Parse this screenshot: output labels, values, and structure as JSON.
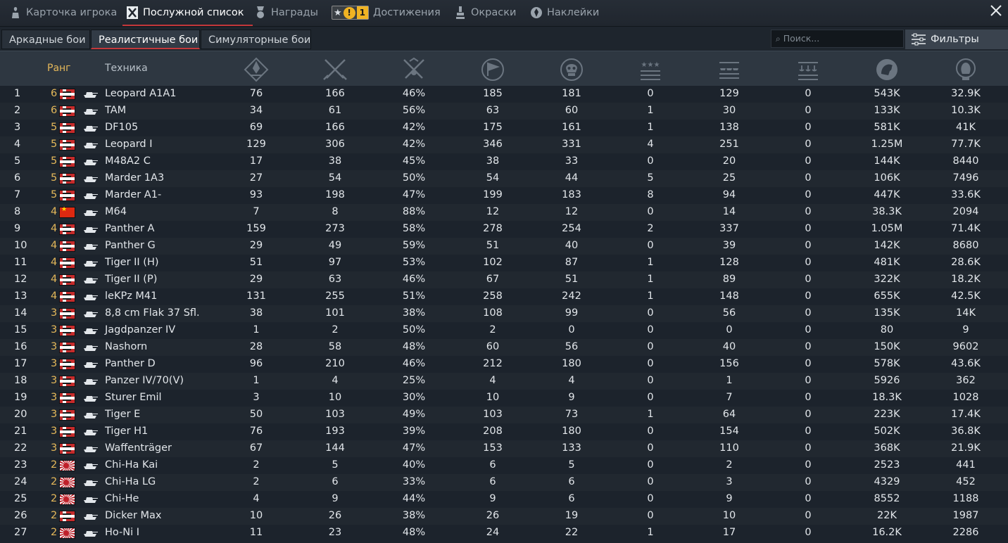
{
  "tabs": [
    {
      "label": "Карточка игрока",
      "icon": "player-card-icon"
    },
    {
      "label": "Послужной список",
      "icon": "service-record-icon",
      "active": true
    },
    {
      "label": "Награды",
      "icon": "medal-icon"
    },
    {
      "label": "Достижения",
      "icon": "achievement-icon",
      "badge_count": "1"
    },
    {
      "label": "Окраски",
      "icon": "paint-icon"
    },
    {
      "label": "Наклейки",
      "icon": "decal-icon"
    }
  ],
  "modes": [
    {
      "label": "Аркадные бои"
    },
    {
      "label": "Реалистичные бои",
      "active": true
    },
    {
      "label": "Симуляторные бои"
    }
  ],
  "search": {
    "placeholder": "Поиск..."
  },
  "filters_label": "Фильтры",
  "columns": {
    "rank": "Ранг",
    "vehicle": "Техника",
    "stat_icons": [
      "sessions-icon",
      "battles-icon",
      "victories-icon",
      "respawns-icon",
      "deaths-icon",
      "air-kills-icon",
      "ground-kills-icon",
      "naval-kills-icon",
      "silver-lions-icon",
      "research-points-icon"
    ]
  },
  "colors": {
    "accent": "#c3383b",
    "rank": "#e5b85a"
  },
  "rows": [
    {
      "idx": "1",
      "rank": "6",
      "nation": "de",
      "name": "Leopard A1A1",
      "s": [
        "76",
        "166",
        "46%",
        "185",
        "181",
        "0",
        "129",
        "0",
        "543K",
        "32.9K"
      ]
    },
    {
      "idx": "2",
      "rank": "6",
      "nation": "de",
      "name": "TAM",
      "s": [
        "34",
        "61",
        "56%",
        "63",
        "60",
        "1",
        "30",
        "0",
        "133K",
        "10.3K"
      ]
    },
    {
      "idx": "3",
      "rank": "5",
      "nation": "de",
      "name": "DF105",
      "s": [
        "69",
        "166",
        "42%",
        "175",
        "161",
        "1",
        "138",
        "0",
        "581K",
        "41K"
      ]
    },
    {
      "idx": "4",
      "rank": "5",
      "nation": "de",
      "name": "Leopard I",
      "s": [
        "129",
        "306",
        "42%",
        "346",
        "331",
        "4",
        "251",
        "0",
        "1.25M",
        "77.7K"
      ]
    },
    {
      "idx": "5",
      "rank": "5",
      "nation": "de",
      "name": "M48A2 C",
      "s": [
        "17",
        "38",
        "45%",
        "38",
        "33",
        "0",
        "20",
        "0",
        "144K",
        "8440"
      ]
    },
    {
      "idx": "6",
      "rank": "5",
      "nation": "de",
      "name": "Marder 1A3",
      "s": [
        "27",
        "54",
        "50%",
        "54",
        "44",
        "5",
        "25",
        "0",
        "106K",
        "7496"
      ]
    },
    {
      "idx": "7",
      "rank": "5",
      "nation": "de",
      "name": "Marder A1-",
      "s": [
        "93",
        "198",
        "47%",
        "199",
        "183",
        "8",
        "94",
        "0",
        "447K",
        "33.6K"
      ]
    },
    {
      "idx": "8",
      "rank": "4",
      "nation": "cn",
      "name": "M64",
      "s": [
        "7",
        "8",
        "88%",
        "12",
        "12",
        "0",
        "14",
        "0",
        "38.3K",
        "2094"
      ]
    },
    {
      "idx": "9",
      "rank": "4",
      "nation": "de",
      "name": "Panther A",
      "s": [
        "159",
        "273",
        "58%",
        "278",
        "254",
        "2",
        "337",
        "0",
        "1.05M",
        "71.4K"
      ]
    },
    {
      "idx": "10",
      "rank": "4",
      "nation": "de",
      "name": "Panther G",
      "s": [
        "29",
        "49",
        "59%",
        "51",
        "40",
        "0",
        "39",
        "0",
        "142K",
        "8680"
      ]
    },
    {
      "idx": "11",
      "rank": "4",
      "nation": "de",
      "name": "Tiger II (H)",
      "s": [
        "51",
        "97",
        "53%",
        "102",
        "87",
        "1",
        "128",
        "0",
        "481K",
        "28.6K"
      ]
    },
    {
      "idx": "12",
      "rank": "4",
      "nation": "de",
      "name": "Tiger II (P)",
      "s": [
        "29",
        "63",
        "46%",
        "67",
        "51",
        "1",
        "89",
        "0",
        "322K",
        "18.2K"
      ]
    },
    {
      "idx": "13",
      "rank": "4",
      "nation": "de",
      "name": "leKPz M41",
      "s": [
        "131",
        "255",
        "51%",
        "258",
        "242",
        "1",
        "148",
        "0",
        "655K",
        "42.5K"
      ]
    },
    {
      "idx": "14",
      "rank": "3",
      "nation": "de",
      "name": "8,8 cm Flak 37 Sfl.",
      "s": [
        "38",
        "101",
        "38%",
        "108",
        "99",
        "0",
        "56",
        "0",
        "135K",
        "14K"
      ]
    },
    {
      "idx": "15",
      "rank": "3",
      "nation": "de",
      "name": "Jagdpanzer IV",
      "s": [
        "1",
        "2",
        "50%",
        "2",
        "0",
        "0",
        "0",
        "0",
        "80",
        "9"
      ]
    },
    {
      "idx": "16",
      "rank": "3",
      "nation": "de",
      "name": "Nashorn",
      "s": [
        "28",
        "58",
        "48%",
        "60",
        "56",
        "0",
        "40",
        "0",
        "150K",
        "9602"
      ]
    },
    {
      "idx": "17",
      "rank": "3",
      "nation": "de",
      "name": "Panther D",
      "s": [
        "96",
        "210",
        "46%",
        "212",
        "180",
        "0",
        "156",
        "0",
        "578K",
        "43.6K"
      ]
    },
    {
      "idx": "18",
      "rank": "3",
      "nation": "de",
      "name": "Panzer IV/70(V)",
      "s": [
        "1",
        "4",
        "25%",
        "4",
        "4",
        "0",
        "1",
        "0",
        "5926",
        "362"
      ]
    },
    {
      "idx": "19",
      "rank": "3",
      "nation": "de",
      "name": "Sturer Emil",
      "s": [
        "3",
        "10",
        "30%",
        "10",
        "9",
        "0",
        "7",
        "0",
        "18.3K",
        "1028"
      ]
    },
    {
      "idx": "20",
      "rank": "3",
      "nation": "de",
      "name": "Tiger E",
      "s": [
        "50",
        "103",
        "49%",
        "103",
        "73",
        "1",
        "64",
        "0",
        "223K",
        "17.4K"
      ]
    },
    {
      "idx": "21",
      "rank": "3",
      "nation": "de",
      "name": "Tiger H1",
      "s": [
        "76",
        "193",
        "39%",
        "208",
        "180",
        "0",
        "154",
        "0",
        "502K",
        "36.8K"
      ]
    },
    {
      "idx": "22",
      "rank": "3",
      "nation": "de",
      "name": "Waffenträger",
      "s": [
        "67",
        "144",
        "47%",
        "153",
        "133",
        "0",
        "110",
        "0",
        "368K",
        "21.9K"
      ]
    },
    {
      "idx": "23",
      "rank": "2",
      "nation": "jp",
      "name": "Chi-Ha Kai",
      "s": [
        "2",
        "5",
        "40%",
        "6",
        "5",
        "0",
        "2",
        "0",
        "2523",
        "441"
      ]
    },
    {
      "idx": "24",
      "rank": "2",
      "nation": "jp",
      "name": "Chi-Ha LG",
      "s": [
        "2",
        "6",
        "33%",
        "6",
        "6",
        "0",
        "3",
        "0",
        "4329",
        "452"
      ]
    },
    {
      "idx": "25",
      "rank": "2",
      "nation": "jp",
      "name": "Chi-He",
      "s": [
        "4",
        "9",
        "44%",
        "9",
        "6",
        "0",
        "9",
        "0",
        "8552",
        "1188"
      ]
    },
    {
      "idx": "26",
      "rank": "2",
      "nation": "de",
      "name": "Dicker Max",
      "s": [
        "10",
        "26",
        "38%",
        "26",
        "19",
        "0",
        "10",
        "0",
        "22K",
        "1987"
      ]
    },
    {
      "idx": "27",
      "rank": "2",
      "nation": "jp",
      "name": "Ho-Ni I",
      "s": [
        "11",
        "23",
        "48%",
        "24",
        "22",
        "1",
        "17",
        "0",
        "16.2K",
        "2286"
      ]
    }
  ]
}
